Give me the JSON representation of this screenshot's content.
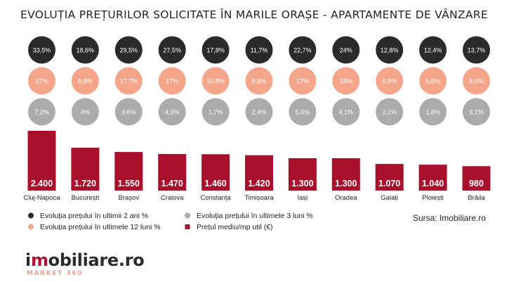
{
  "title": "EVOLUȚIA PREȚURILOR SOLICITATE ÎN MARILE ORAȘE - APARTAMENTE DE VÂNZARE",
  "source": "Sursa: Imobiliare.ro",
  "brand": {
    "prefix": "i",
    "accent": "m",
    "rest": "obiliare.ro",
    "sub": "MARKET 360"
  },
  "colors": {
    "dark": "#2b2b2b",
    "salmon": "#f4a58a",
    "grey": "#ababab",
    "bar": "#a8102b",
    "text": "#222222"
  },
  "legend": [
    {
      "label": "Evoluția prețului în ultimii 2 ani %",
      "marker": "circle",
      "color": "#2b2b2b"
    },
    {
      "label": "Evoluția prețului în ultimele 3 luni %",
      "marker": "circle",
      "color": "#ababab"
    },
    {
      "label": "Evoluția prețului în ultimele 12 luni %",
      "marker": "circle",
      "color": "#f4a58a"
    },
    {
      "label": "Prețul mediu/mp util (€)",
      "marker": "square",
      "color": "#a8102b"
    }
  ],
  "chart_data": {
    "type": "bar",
    "title": "EVOLUȚIA PREȚURILOR SOLICITATE ÎN MARILE ORAȘE - APARTAMENTE DE VÂNZARE",
    "categories": [
      "Cluj-Napoca",
      "București",
      "Brașov",
      "Craiova",
      "Constanța",
      "Timișoara",
      "Iași",
      "Oradea",
      "Galați",
      "Ploiești",
      "Brăila"
    ],
    "series": [
      {
        "name": "Prețul mediu/mp util (€)",
        "values": [
          2400,
          1720,
          1550,
          1470,
          1460,
          1420,
          1300,
          1300,
          1070,
          1040,
          980
        ],
        "labels": [
          "2.400",
          "1.720",
          "1.550",
          "1.470",
          "1.460",
          "1.420",
          "1.300",
          "1.300",
          "1.070",
          "1.040",
          "980"
        ]
      },
      {
        "name": "Evoluția prețului în ultimii 2 ani %",
        "values": [
          33.5,
          18.6,
          29.5,
          27.5,
          17.8,
          11.7,
          22.7,
          24,
          12.8,
          12.4,
          13.7
        ],
        "labels": [
          "33,5%",
          "18,6%",
          "29,5%",
          "27,5%",
          "17,8%",
          "11,7%",
          "22,7%",
          "24%",
          "12,8%",
          "12,4%",
          "13,7%"
        ]
      },
      {
        "name": "Evoluția prețului în ultimele 12 luni %",
        "values": [
          27,
          8.8,
          17.7,
          17,
          10.8,
          8.6,
          17,
          18,
          5.9,
          6.8,
          8.9
        ],
        "labels": [
          "27%",
          "8,8%",
          "17,7%",
          "17%",
          "10,8%",
          "8,6%",
          "17%",
          "18%",
          "5,9%",
          "6,8%",
          "8,9%"
        ]
      },
      {
        "name": "Evoluția prețului în ultimele 3 luni %",
        "values": [
          7.2,
          4,
          3.6,
          4.9,
          1.7,
          2.4,
          5.6,
          4.1,
          2.1,
          1.8,
          3.1
        ],
        "labels": [
          "7,2%",
          "4%",
          "3,6%",
          "4,9%",
          "1,7%",
          "2,4%",
          "5,6%",
          "4,1%",
          "2,1%",
          "1,8%",
          "3,1%"
        ]
      }
    ],
    "xlabel": "",
    "ylabel": "",
    "ylim": [
      0,
      2400
    ],
    "grid": false,
    "legend_position": "bottom-left"
  }
}
